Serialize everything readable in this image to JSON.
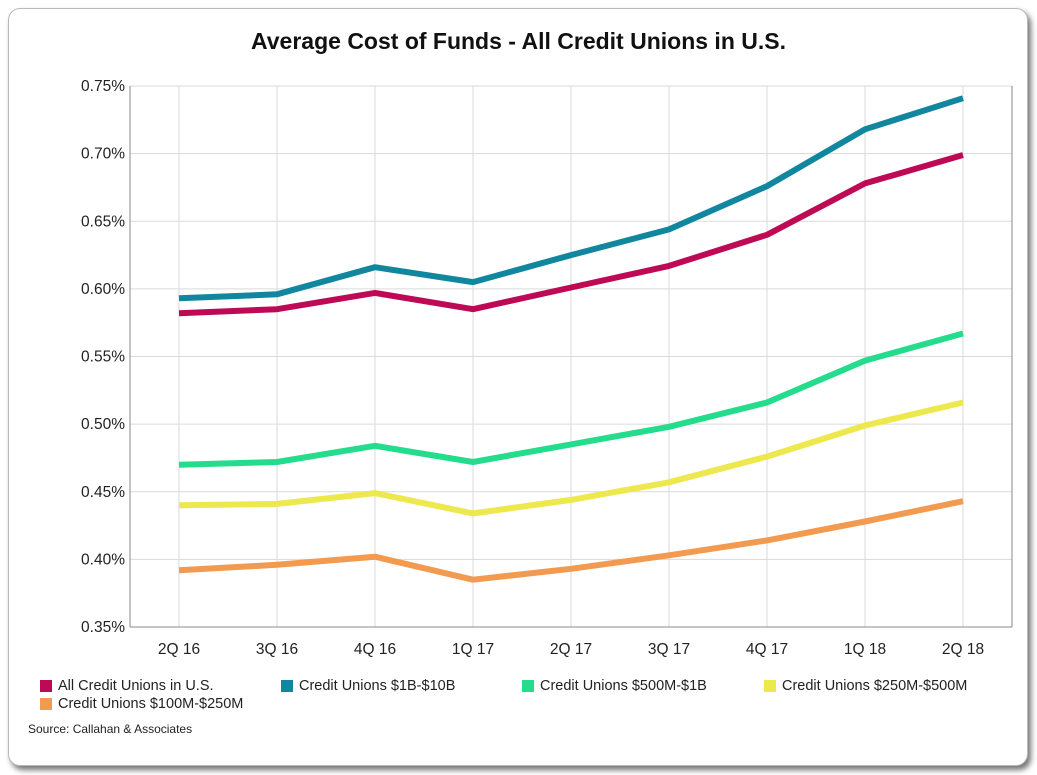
{
  "chart_data": {
    "type": "line",
    "title": "Average Cost of Funds - All Credit Unions in U.S.",
    "xlabel": "",
    "ylabel": "",
    "categories": [
      "2Q 16",
      "3Q 16",
      "4Q 16",
      "1Q 17",
      "2Q 17",
      "3Q 17",
      "4Q 17",
      "1Q 18",
      "2Q 18"
    ],
    "y_ticks": [
      "0.35%",
      "0.40%",
      "0.45%",
      "0.50%",
      "0.55%",
      "0.60%",
      "0.65%",
      "0.70%",
      "0.75%"
    ],
    "ylim": [
      0.35,
      0.75
    ],
    "grid": true,
    "legend_position": "bottom",
    "series": [
      {
        "name": "All Credit Unions in U.S.",
        "color": "#be0a55",
        "values": [
          0.582,
          0.585,
          0.597,
          0.585,
          0.601,
          0.617,
          0.64,
          0.678,
          0.699
        ]
      },
      {
        "name": "Credit Unions $1B-$10B",
        "color": "#10879f",
        "values": [
          0.593,
          0.596,
          0.616,
          0.605,
          0.625,
          0.644,
          0.676,
          0.718,
          0.741
        ]
      },
      {
        "name": "Credit Unions $500M-$1B",
        "color": "#24dc8c",
        "values": [
          0.47,
          0.472,
          0.484,
          0.472,
          0.485,
          0.498,
          0.516,
          0.547,
          0.567
        ]
      },
      {
        "name": "Credit Unions $250M-$500M",
        "color": "#ede84e",
        "values": [
          0.44,
          0.441,
          0.449,
          0.434,
          0.444,
          0.457,
          0.476,
          0.499,
          0.516
        ]
      },
      {
        "name": "Credit Unions $100M-$250M",
        "color": "#f19a50",
        "values": [
          0.392,
          0.396,
          0.402,
          0.385,
          0.393,
          0.403,
          0.414,
          0.428,
          0.443
        ]
      }
    ]
  },
  "source": "Source: Callahan & Associates"
}
